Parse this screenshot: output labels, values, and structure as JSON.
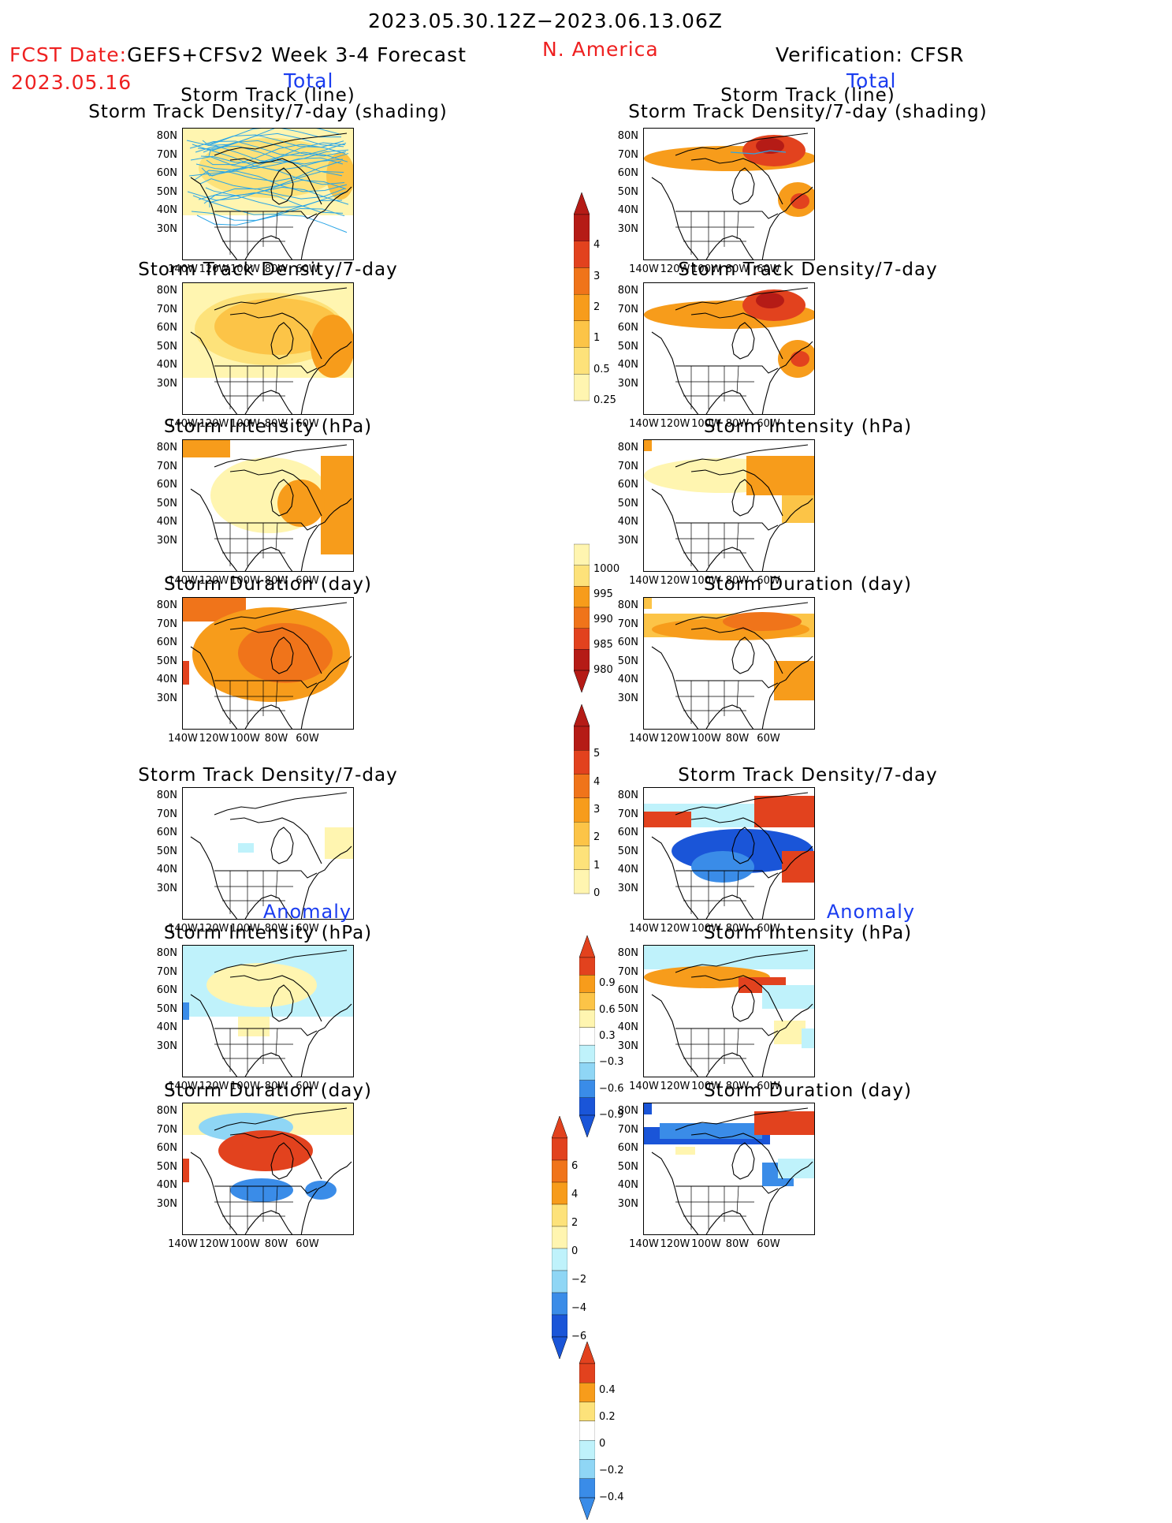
{
  "header": {
    "date_range": "2023.05.30.12Z−2023.06.13.06Z",
    "fcst_label": "FCST Date:",
    "forecast_name": "GEFS+CFSv2 Week 3-4 Forecast",
    "fcst_date": "2023.05.16",
    "region": "N. America",
    "verification": "Verification: CFSR",
    "left_total": "Total",
    "right_total": "Total",
    "left_anomaly": "Anomaly",
    "right_anomaly": "Anomaly"
  },
  "titles": {
    "storm_track_line": "Storm Track (line)",
    "storm_track_density_shading": "Storm Track Density/7-day (shading)",
    "storm_track_density": "Storm Track Density/7-day",
    "storm_intensity": "Storm Intensity (hPa)",
    "storm_duration": "Storm Duration (day)"
  },
  "axes": {
    "lat_labels": [
      "80N",
      "70N",
      "60N",
      "50N",
      "40N",
      "30N"
    ],
    "lon_labels": [
      "140W",
      "120W",
      "100W",
      "80W",
      "60W"
    ]
  },
  "colorbars": {
    "density_total": [
      "4",
      "3",
      "2",
      "1",
      "0.5",
      "0.25"
    ],
    "intensity_total": [
      "1000",
      "995",
      "990",
      "985",
      "980"
    ],
    "duration_total": [
      "5",
      "4",
      "3",
      "2",
      "1",
      "0"
    ],
    "density_anom": [
      "0.9",
      "0.6",
      "0.3",
      "−0.3",
      "−0.6",
      "−0.9"
    ],
    "intensity_anom": [
      "6",
      "4",
      "2",
      "0",
      "−2",
      "−4",
      "−6"
    ],
    "duration_anom": [
      "0.4",
      "0.2",
      "0",
      "−0.2",
      "−0.4"
    ]
  },
  "colors": {
    "light_yellow": "#fff5b0",
    "yellow": "#fde27a",
    "orange_light": "#fcc447",
    "orange": "#f79c1b",
    "orange_dark": "#f0741a",
    "red": "#e2421e",
    "dark_red": "#b51b16",
    "light_blue": "#bff2fb",
    "sky_blue": "#8fd6f5",
    "blue": "#3a8ce8",
    "dark_blue": "#1a55d8",
    "track_line": "#2aa5e6",
    "title_red": "#ee2020",
    "title_blue": "#1a3cf0"
  }
}
